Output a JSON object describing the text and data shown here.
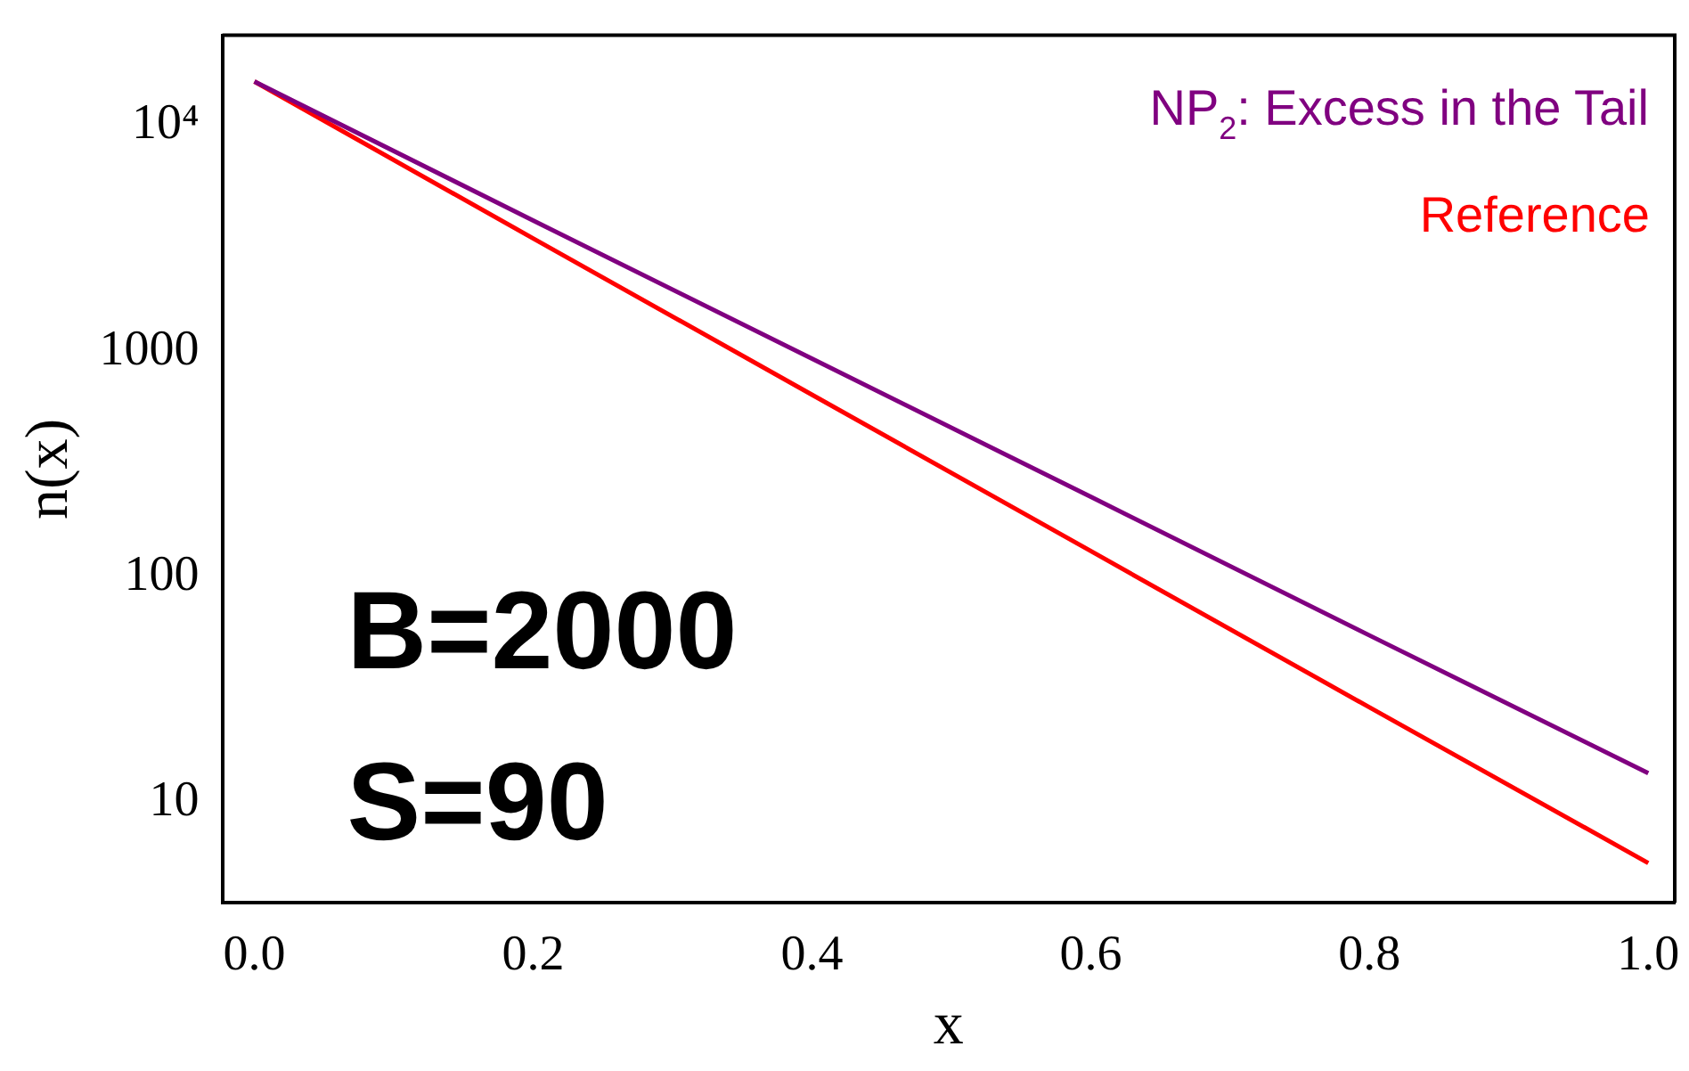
{
  "chart_data": {
    "type": "line",
    "xlabel": "x",
    "ylabel": "n(x)",
    "x": [
      0,
      0.2,
      0.4,
      0.6,
      0.8,
      1.0
    ],
    "series": [
      {
        "name": "NP$_{2}$: Excess in the Tail",
        "color": "#800080",
        "values": [
          15600,
          3780,
          925,
          226,
          55,
          13.5
        ]
      },
      {
        "name": "Reference",
        "color": "#ff0000",
        "values": [
          15600,
          3150,
          640,
          130,
          26.4,
          5.4
        ]
      }
    ],
    "log": "y",
    "xlim": [
      -0.023,
      1.019
    ],
    "ylim": [
      3.6,
      25000
    ],
    "xticks": [
      {
        "value": 0,
        "label": "0.0"
      },
      0.2,
      0.4,
      0.6,
      0.8,
      {
        "value": 1,
        "label": "1.0"
      }
    ],
    "yticks": [
      10,
      100,
      1000,
      {
        "value": 10000,
        "label": "10⁴"
      }
    ],
    "annotations": [
      "B=2000",
      "S=90"
    ],
    "legend": "top right",
    "marker": "none",
    "line_style": "solid",
    "grid": false
  }
}
